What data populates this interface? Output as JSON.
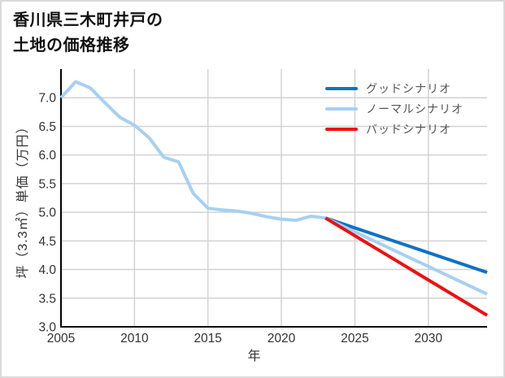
{
  "header": {
    "line1": "香川県三木町井戸の",
    "line2": "土地の価格推移"
  },
  "colors": {
    "good_scenario": "#0d72c6",
    "normal_scenario": "#a6d0f2",
    "bad_scenario": "#ee1010"
  },
  "chart_data": {
    "type": "line",
    "title": "香川県三木町井戸の土地の価格推移",
    "xlabel": "年",
    "ylabel": "坪（3.3㎡）単価（万円）",
    "xlim": [
      2005,
      2034
    ],
    "ylim": [
      3.0,
      7.5
    ],
    "x_ticks": [
      2005,
      2010,
      2015,
      2020,
      2025,
      2030
    ],
    "y_ticks": [
      3.0,
      3.5,
      4.0,
      4.5,
      5.0,
      5.5,
      6.0,
      6.5,
      7.0
    ],
    "grid": true,
    "legend_position": "upper-right-inside",
    "series": [
      {
        "name": "history",
        "show_in_legend": false,
        "color": "#a6d0f2",
        "x": [
          2005,
          2006,
          2007,
          2008,
          2009,
          2010,
          2011,
          2012,
          2013,
          2014,
          2015,
          2016,
          2017,
          2018,
          2019,
          2020,
          2021,
          2022,
          2023
        ],
        "values": [
          7.0,
          7.28,
          7.17,
          6.91,
          6.66,
          6.52,
          6.3,
          5.96,
          5.88,
          5.33,
          5.07,
          5.04,
          5.02,
          4.98,
          4.92,
          4.88,
          4.86,
          4.93,
          4.9
        ]
      },
      {
        "name": "グッドシナリオ",
        "show_in_legend": true,
        "color": "#0d72c6",
        "x": [
          2023,
          2034
        ],
        "values": [
          4.9,
          3.95
        ]
      },
      {
        "name": "ノーマルシナリオ",
        "show_in_legend": true,
        "color": "#a6d0f2",
        "x": [
          2023,
          2034
        ],
        "values": [
          4.9,
          3.57
        ]
      },
      {
        "name": "バッドシナリオ",
        "show_in_legend": true,
        "color": "#ee1010",
        "x": [
          2023,
          2034
        ],
        "values": [
          4.9,
          3.2
        ]
      }
    ]
  }
}
